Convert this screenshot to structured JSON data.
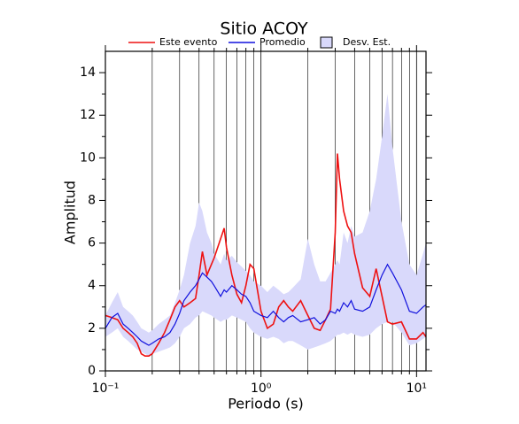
{
  "chart_data": {
    "type": "line",
    "title": "Sitio ACOY",
    "x_label": "Periodo (s)",
    "y_label": "Amplitud",
    "log_x": true,
    "grid": true,
    "legend": "top",
    "xlim": [
      0.1,
      11.5
    ],
    "ylim": [
      0,
      15
    ],
    "xticks": [
      {
        "value": 0.1,
        "label": "10⁻¹"
      },
      {
        "value": 1,
        "label": "10⁰"
      },
      {
        "value": 10,
        "label": "10¹"
      }
    ],
    "xminorticks": [
      0.2,
      0.3,
      0.4,
      0.5,
      0.6,
      0.7,
      0.8,
      0.9,
      2,
      3,
      4,
      5,
      6,
      7,
      8,
      9
    ],
    "yticks": [
      0,
      2,
      4,
      6,
      8,
      10,
      12,
      14
    ],
    "yminorticks": [
      1,
      3,
      5,
      7,
      9,
      11,
      13
    ],
    "x": [
      0.1,
      0.11,
      0.12,
      0.13,
      0.14,
      0.15,
      0.16,
      0.17,
      0.18,
      0.19,
      0.2,
      0.22,
      0.24,
      0.26,
      0.28,
      0.3,
      0.32,
      0.35,
      0.38,
      0.4,
      0.42,
      0.45,
      0.48,
      0.5,
      0.55,
      0.58,
      0.6,
      0.65,
      0.7,
      0.75,
      0.8,
      0.85,
      0.9,
      1.0,
      1.1,
      1.2,
      1.3,
      1.4,
      1.5,
      1.6,
      1.8,
      2.0,
      2.2,
      2.4,
      2.6,
      2.8,
      3.0,
      3.1,
      3.2,
      3.4,
      3.6,
      3.8,
      4.0,
      4.5,
      5.0,
      5.5,
      6.0,
      6.5,
      7.0,
      8.0,
      9.0,
      10,
      11,
      11.5
    ],
    "series": [
      {
        "name": "Este evento",
        "color": "#ee1111",
        "values": [
          2.6,
          2.5,
          2.4,
          2.0,
          1.8,
          1.6,
          1.3,
          0.8,
          0.7,
          0.7,
          0.8,
          1.3,
          1.8,
          2.4,
          3.0,
          3.3,
          3.0,
          3.2,
          3.4,
          4.5,
          5.6,
          4.5,
          5.0,
          5.3,
          6.2,
          6.7,
          5.8,
          4.5,
          3.6,
          3.2,
          4.0,
          5.0,
          4.8,
          2.8,
          2.0,
          2.2,
          3.0,
          3.3,
          3.0,
          2.8,
          3.3,
          2.6,
          2.0,
          1.9,
          2.4,
          2.9,
          6.5,
          10.2,
          9.0,
          7.5,
          6.8,
          6.5,
          5.5,
          3.9,
          3.5,
          4.8,
          3.5,
          2.3,
          2.2,
          2.3,
          1.5,
          1.5,
          1.8,
          1.6
        ]
      },
      {
        "name": "Promedio",
        "color": "#1111dd",
        "values": [
          2.0,
          2.5,
          2.7,
          2.2,
          2.0,
          1.8,
          1.6,
          1.4,
          1.3,
          1.2,
          1.3,
          1.5,
          1.6,
          1.8,
          2.2,
          2.7,
          3.3,
          3.7,
          4.0,
          4.3,
          4.6,
          4.4,
          4.2,
          4.0,
          3.5,
          3.8,
          3.7,
          4.0,
          3.8,
          3.6,
          3.5,
          3.2,
          2.8,
          2.6,
          2.5,
          2.8,
          2.5,
          2.3,
          2.5,
          2.6,
          2.3,
          2.4,
          2.5,
          2.2,
          2.4,
          2.8,
          2.7,
          2.9,
          2.8,
          3.2,
          3.0,
          3.3,
          2.9,
          2.8,
          3.0,
          3.8,
          4.5,
          5.0,
          4.6,
          3.8,
          2.8,
          2.7,
          3.0,
          3.1
        ]
      },
      {
        "name": "Desv. Est.",
        "color": "#d9d9fb",
        "lower": [
          1.6,
          1.8,
          2.0,
          1.6,
          1.4,
          1.2,
          1.0,
          0.9,
          0.8,
          0.7,
          0.8,
          0.9,
          1.0,
          1.1,
          1.3,
          1.6,
          2.0,
          2.2,
          2.5,
          2.6,
          2.8,
          2.7,
          2.6,
          2.5,
          2.3,
          2.4,
          2.4,
          2.6,
          2.5,
          2.4,
          2.3,
          2.0,
          1.8,
          1.6,
          1.5,
          1.6,
          1.5,
          1.3,
          1.4,
          1.4,
          1.2,
          1.0,
          1.1,
          1.2,
          1.3,
          1.4,
          1.6,
          1.7,
          1.7,
          1.8,
          1.7,
          1.8,
          1.7,
          1.6,
          1.7,
          2.0,
          2.2,
          2.3,
          2.3,
          1.8,
          1.2,
          1.3,
          1.5,
          1.6
        ],
        "upper": [
          2.6,
          3.2,
          3.7,
          3.0,
          2.8,
          2.6,
          2.3,
          2.0,
          1.9,
          1.8,
          1.9,
          2.2,
          2.4,
          2.6,
          3.2,
          3.8,
          4.5,
          6.0,
          6.8,
          7.9,
          7.5,
          6.5,
          6.0,
          5.5,
          5.0,
          5.5,
          5.2,
          5.4,
          5.1,
          4.9,
          4.7,
          4.5,
          4.2,
          4.0,
          3.7,
          4.0,
          3.8,
          3.6,
          3.7,
          3.9,
          4.3,
          6.2,
          5.0,
          4.2,
          4.2,
          4.6,
          5.0,
          5.2,
          5.0,
          6.5,
          6.0,
          6.8,
          6.3,
          6.5,
          7.5,
          9.0,
          11.0,
          13.0,
          10.5,
          7.0,
          5.0,
          4.5,
          5.5,
          6.0
        ]
      }
    ]
  }
}
